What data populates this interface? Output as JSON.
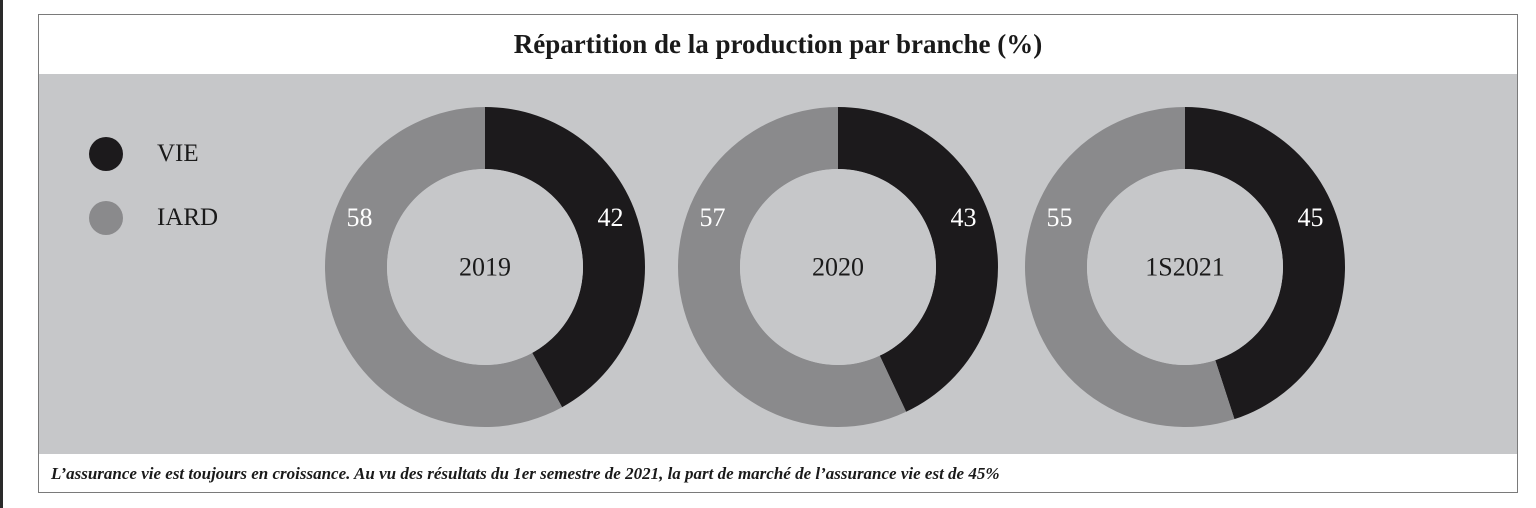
{
  "title": "Répartition de la production par branche (%)",
  "caption": "L’assurance vie est toujours en croissance. Au vu des résultats du 1er semestre de 2021, la part de marché de l’assurance vie est de 45%",
  "colors": {
    "vie": "#1c1a1c",
    "iard": "#8a8a8c",
    "panel": "#c6c7c9"
  },
  "chart_data": {
    "type": "pie",
    "title": "Répartition de la production par branche (%)",
    "legend": {
      "placement": "left",
      "entries": [
        {
          "name": "VIE",
          "color": "#1c1a1c"
        },
        {
          "name": "IARD",
          "color": "#8a8a8c"
        }
      ]
    },
    "charts": [
      {
        "center_label": "2019",
        "series": [
          {
            "name": "VIE",
            "value": 42
          },
          {
            "name": "IARD",
            "value": 58
          }
        ]
      },
      {
        "center_label": "2020",
        "series": [
          {
            "name": "VIE",
            "value": 43
          },
          {
            "name": "IARD",
            "value": 57
          }
        ]
      },
      {
        "center_label": "1S2021",
        "series": [
          {
            "name": "VIE",
            "value": 45
          },
          {
            "name": "IARD",
            "value": 55
          }
        ]
      }
    ]
  }
}
